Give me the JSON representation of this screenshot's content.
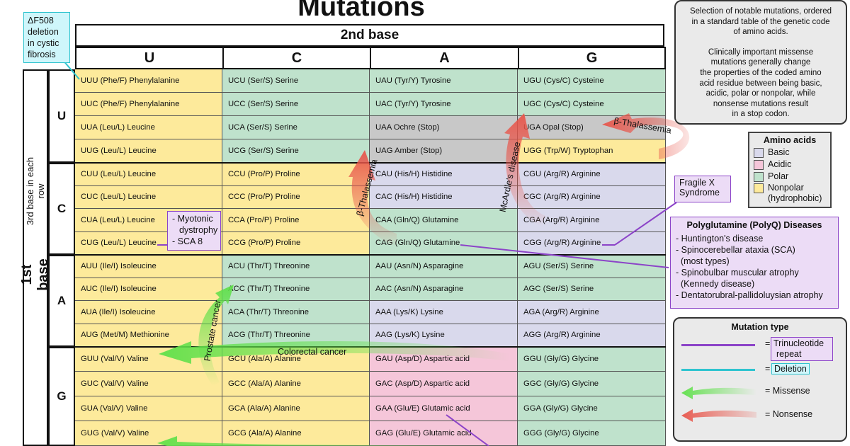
{
  "title": "Mutations",
  "second_base_label": "2nd base",
  "first_base_label": "1st base",
  "third_base_label": "3rd base in each row",
  "bases": [
    "U",
    "C",
    "A",
    "G"
  ],
  "rows": [
    [
      "UUU (Phe/F) Phenylalanine",
      "UCU (Ser/S) Serine",
      "UAU (Tyr/Y) Tyrosine",
      "UGU (Cys/C) Cysteine"
    ],
    [
      "UUC (Phe/F) Phenylalanine",
      "UCC (Ser/S) Serine",
      "UAC (Tyr/Y) Tyrosine",
      "UGC (Cys/C) Cysteine"
    ],
    [
      "UUA (Leu/L) Leucine",
      "UCA (Ser/S) Serine",
      "UAA Ochre (Stop)",
      "UGA Opal (Stop)"
    ],
    [
      "UUG (Leu/L) Leucine",
      "UCG (Ser/S) Serine",
      "UAG Amber (Stop)",
      "UGG (Trp/W) Tryptophan"
    ],
    [
      "CUU (Leu/L) Leucine",
      "CCU (Pro/P) Proline",
      "CAU (His/H) Histidine",
      "CGU (Arg/R) Arginine"
    ],
    [
      "CUC (Leu/L) Leucine",
      "CCC (Pro/P) Proline",
      "CAC (His/H) Histidine",
      "CGC (Arg/R) Arginine"
    ],
    [
      "CUA (Leu/L) Leucine",
      "CCA (Pro/P) Proline",
      "CAA (Gln/Q) Glutamine",
      "CGA (Arg/R) Arginine"
    ],
    [
      "CUG (Leu/L) Leucine",
      "CCG (Pro/P) Proline",
      "CAG (Gln/Q) Glutamine",
      "CGG (Arg/R) Arginine"
    ],
    [
      "AUU (Ile/I) Isoleucine",
      "ACU (Thr/T) Threonine",
      "AAU (Asn/N) Asparagine",
      "AGU (Ser/S) Serine"
    ],
    [
      "AUC (Ile/I) Isoleucine",
      "ACC (Thr/T) Threonine",
      "AAC (Asn/N) Asparagine",
      "AGC (Ser/S) Serine"
    ],
    [
      "AUA (Ile/I) Isoleucine",
      "ACA (Thr/T) Threonine",
      "AAA (Lys/K) Lysine",
      "AGA (Arg/R) Arginine"
    ],
    [
      "AUG (Met/M) Methionine",
      "ACG (Thr/T) Threonine",
      "AAG (Lys/K) Lysine",
      "AGG (Arg/R) Arginine"
    ],
    [
      "GUU (Val/V) Valine",
      "GCU (Ala/A) Alanine",
      "GAU (Asp/D) Aspartic acid",
      "GGU (Gly/G) Glycine"
    ],
    [
      "GUC (Val/V) Valine",
      "GCC (Ala/A) Alanine",
      "GAC (Asp/D) Aspartic acid",
      "GGC (Gly/G) Glycine"
    ],
    [
      "GUA (Val/V) Valine",
      "GCA (Ala/A) Alanine",
      "GAA (Glu/E) Glutamic acid",
      "GGA (Gly/G) Glycine"
    ],
    [
      "GUG (Val/V) Valine",
      "GCG (Ala/A) Alanine",
      "GAG (Glu/E) Glutamic acid",
      "GGG (Gly/G) Glycine"
    ]
  ],
  "classes": [
    [
      "nonpolar",
      "polar",
      "polar",
      "polar"
    ],
    [
      "nonpolar",
      "polar",
      "polar",
      "polar"
    ],
    [
      "nonpolar",
      "polar",
      "stop",
      "stop"
    ],
    [
      "nonpolar",
      "polar",
      "stop",
      "nonpolar"
    ],
    [
      "nonpolar",
      "nonpolar",
      "basic",
      "basic"
    ],
    [
      "nonpolar",
      "nonpolar",
      "basic",
      "basic"
    ],
    [
      "nonpolar",
      "nonpolar",
      "polar",
      "basic"
    ],
    [
      "nonpolar",
      "nonpolar",
      "polar",
      "basic"
    ],
    [
      "nonpolar",
      "polar",
      "polar",
      "polar"
    ],
    [
      "nonpolar",
      "polar",
      "polar",
      "polar"
    ],
    [
      "nonpolar",
      "polar",
      "basic",
      "basic"
    ],
    [
      "nonpolar",
      "polar",
      "basic",
      "basic"
    ],
    [
      "nonpolar",
      "nonpolar",
      "acidic",
      "polar"
    ],
    [
      "nonpolar",
      "nonpolar",
      "acidic",
      "polar"
    ],
    [
      "nonpolar",
      "nonpolar",
      "acidic",
      "polar"
    ],
    [
      "nonpolar",
      "nonpolar",
      "acidic",
      "polar"
    ]
  ],
  "colors": {
    "basic": "#d9d9ec",
    "acidic": "#f5c6d9",
    "polar": "#bfe2cc",
    "nonpolar": "#fdea9b",
    "stop": "#c8c8c8",
    "missense": "#5fe04a",
    "nonsense": "#e8554a",
    "trinucleotide": "#8c44c8",
    "deletion": "#2fc4cf"
  },
  "notes": {
    "deletion": "ΔF508 deletion in cystic fibrosis",
    "myotonic_line1": "- Myotonic",
    "myotonic_line2": "dystrophy",
    "myotonic_line3": "- SCA 8",
    "fragile_x_line1": "Fragile X",
    "fragile_x_line2": "Syndrome",
    "info_lines": [
      "Selection of notable mutations, ordered",
      "in a standard table of the genetic code",
      "of amino acids.",
      "",
      "Clinically important missense",
      "mutations generally change",
      "the properties of the coded amino",
      "acid residue between being basic,",
      "acidic, polar or nonpolar, while",
      "nonsense mutations result",
      "in a stop codon."
    ]
  },
  "polyq": {
    "title": "Polyglutamine (PolyQ) Diseases",
    "items": [
      "- Huntington's disease",
      "- Spinocerebellar ataxia (SCA)",
      "  (most types)",
      "- Spinobulbar muscular atrophy",
      "  (Kennedy disease)",
      "- Dentatorubral-pallidoluysian atrophy"
    ]
  },
  "amino_legend": {
    "title": "Amino acids",
    "items": [
      {
        "label": "Basic",
        "key": "basic"
      },
      {
        "label": "Acidic",
        "key": "acidic"
      },
      {
        "label": "Polar",
        "key": "polar"
      },
      {
        "label": "Nonpolar",
        "key": "nonpolar"
      }
    ],
    "nonpolar_sub": "(hydrophobic)"
  },
  "mutation_legend": {
    "title": "Mutation type",
    "trinucleotide_line1": "Trinucleotide",
    "trinucleotide_line2": "repeat",
    "deletion": "Deletion",
    "missense": "= Missense",
    "nonsense": "= Nonsense",
    "eq": "="
  },
  "arrow_labels": {
    "beta_thal_1": "β-Thalassemia",
    "beta_thal_2": "β-Thalassemia",
    "mcardle": "McArdle's disease",
    "prostate": "Prostate cancer",
    "colorectal": "Colorectal cancer"
  }
}
